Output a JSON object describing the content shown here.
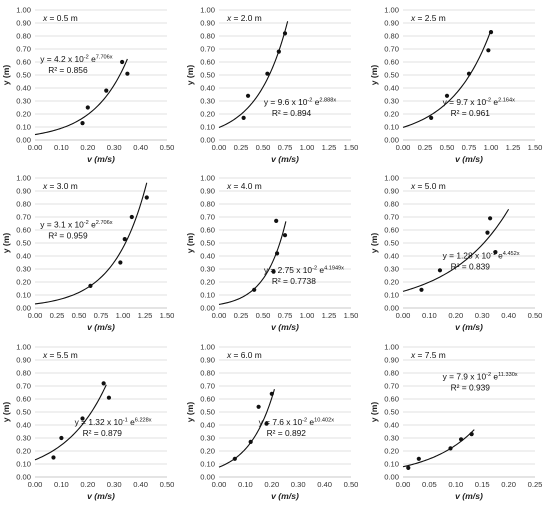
{
  "chart_data": [
    {
      "type": "scatter",
      "panel_label": "x = 0.5 m",
      "equation": {
        "prefix": "y = 4.2 x 10",
        "coef_exp": "-2",
        "mid": " e",
        "rate_exp": "7.706x"
      },
      "r2_text": "R² = 0.856",
      "coef": 0.042,
      "rate": 7.706,
      "points": [
        [
          0.18,
          0.13
        ],
        [
          0.2,
          0.25
        ],
        [
          0.27,
          0.38
        ],
        [
          0.33,
          0.6
        ],
        [
          0.35,
          0.51
        ]
      ],
      "trend_x": [
        0.0,
        0.35
      ],
      "xlim": [
        0,
        0.5
      ],
      "xticks": [
        0,
        0.1,
        0.2,
        0.3,
        0.4,
        0.5
      ],
      "xdecimals": 2,
      "ylim": [
        0,
        1
      ],
      "yticks": [
        0,
        0.1,
        0.2,
        0.3,
        0.4,
        0.5,
        0.6,
        0.7,
        0.8,
        0.9,
        1.0
      ],
      "xlabel": "v (m/s)",
      "ylabel": "y (m)"
    },
    {
      "type": "scatter",
      "panel_label": "x = 2.0 m",
      "equation": {
        "prefix": "y = 9.6 x 10",
        "coef_exp": "-2",
        "mid": " e",
        "rate_exp": "2.888x"
      },
      "r2_text": "R² = 0.894",
      "coef": 0.096,
      "rate": 2.888,
      "points": [
        [
          0.28,
          0.17
        ],
        [
          0.33,
          0.34
        ],
        [
          0.55,
          0.51
        ],
        [
          0.68,
          0.68
        ],
        [
          0.75,
          0.82
        ]
      ],
      "trend_x": [
        0.0,
        0.78
      ],
      "xlim": [
        0,
        1.5
      ],
      "xticks": [
        0,
        0.25,
        0.5,
        0.75,
        1.0,
        1.25,
        1.5
      ],
      "xdecimals": 2,
      "ylim": [
        0,
        1
      ],
      "yticks": [
        0,
        0.1,
        0.2,
        0.3,
        0.4,
        0.5,
        0.6,
        0.7,
        0.8,
        0.9,
        1.0
      ],
      "xlabel": "v (m/s)",
      "ylabel": "y (m)"
    },
    {
      "type": "scatter",
      "panel_label": "x = 2.5 m",
      "equation": {
        "prefix": "y = 9.7 x 10",
        "coef_exp": "-2",
        "mid": " e",
        "rate_exp": "2.164x"
      },
      "r2_text": "R² = 0.961",
      "coef": 0.097,
      "rate": 2.164,
      "points": [
        [
          0.32,
          0.17
        ],
        [
          0.5,
          0.34
        ],
        [
          0.75,
          0.51
        ],
        [
          0.97,
          0.69
        ],
        [
          1.0,
          0.83
        ]
      ],
      "trend_x": [
        0.0,
        1.0
      ],
      "xlim": [
        0,
        1.5
      ],
      "xticks": [
        0,
        0.25,
        0.5,
        0.75,
        1.0,
        1.25,
        1.5
      ],
      "xdecimals": 2,
      "ylim": [
        0,
        1
      ],
      "yticks": [
        0,
        0.1,
        0.2,
        0.3,
        0.4,
        0.5,
        0.6,
        0.7,
        0.8,
        0.9,
        1.0
      ],
      "xlabel": "v (m/s)",
      "ylabel": "y (m)"
    },
    {
      "type": "scatter",
      "panel_label": "x = 3.0 m",
      "equation": {
        "prefix": "y = 3.1 x 10",
        "coef_exp": "-2",
        "mid": " e",
        "rate_exp": "2.706x"
      },
      "r2_text": "R² = 0.959",
      "coef": 0.031,
      "rate": 2.706,
      "points": [
        [
          0.63,
          0.17
        ],
        [
          0.97,
          0.35
        ],
        [
          1.02,
          0.53
        ],
        [
          1.1,
          0.7
        ],
        [
          1.27,
          0.85
        ]
      ],
      "trend_x": [
        0.0,
        1.27
      ],
      "xlim": [
        0,
        1.5
      ],
      "xticks": [
        0,
        0.25,
        0.5,
        0.75,
        1.0,
        1.25,
        1.5
      ],
      "xdecimals": 2,
      "ylim": [
        0,
        1
      ],
      "yticks": [
        0,
        0.1,
        0.2,
        0.3,
        0.4,
        0.5,
        0.6,
        0.7,
        0.8,
        0.9,
        1.0
      ],
      "xlabel": "v (m/s)",
      "ylabel": "y (m)"
    },
    {
      "type": "scatter",
      "panel_label": "x = 4.0 m",
      "equation": {
        "prefix": "y = 2.75 x 10",
        "coef_exp": "-2",
        "mid": " e",
        "rate_exp": "4.1949x"
      },
      "r2_text": "R² = 0.7738",
      "coef": 0.0275,
      "rate": 4.1949,
      "points": [
        [
          0.4,
          0.14
        ],
        [
          0.62,
          0.28
        ],
        [
          0.66,
          0.42
        ],
        [
          0.65,
          0.67
        ],
        [
          0.75,
          0.56
        ]
      ],
      "trend_x": [
        0.0,
        0.76
      ],
      "xlim": [
        0,
        1.5
      ],
      "xticks": [
        0,
        0.25,
        0.5,
        0.75,
        1.0,
        1.25,
        1.5
      ],
      "xdecimals": 2,
      "ylim": [
        0,
        1
      ],
      "yticks": [
        0,
        0.1,
        0.2,
        0.3,
        0.4,
        0.5,
        0.6,
        0.7,
        0.8,
        0.9,
        1.0
      ],
      "xlabel": "v (m/s)",
      "ylabel": "y (m)"
    },
    {
      "type": "scatter",
      "panel_label": "x = 5.0 m",
      "equation": {
        "prefix": "y = 1.28 x 10",
        "coef_exp": "-1",
        "mid": " e",
        "rate_exp": "4.452x"
      },
      "r2_text": "R² = 0.839",
      "coef": 0.128,
      "rate": 4.452,
      "points": [
        [
          0.07,
          0.14
        ],
        [
          0.14,
          0.29
        ],
        [
          0.32,
          0.58
        ],
        [
          0.33,
          0.69
        ],
        [
          0.35,
          0.43
        ]
      ],
      "trend_x": [
        0.0,
        0.4
      ],
      "xlim": [
        0,
        0.5
      ],
      "xticks": [
        0,
        0.1,
        0.2,
        0.3,
        0.4,
        0.5
      ],
      "xdecimals": 2,
      "ylim": [
        0,
        1
      ],
      "yticks": [
        0,
        0.1,
        0.2,
        0.3,
        0.4,
        0.5,
        0.6,
        0.7,
        0.8,
        0.9,
        1.0
      ],
      "xlabel": "v (m/s)",
      "ylabel": "y (m)"
    },
    {
      "type": "scatter",
      "panel_label": "x = 5.5 m",
      "equation": {
        "prefix": "y = 1.32 x 10",
        "coef_exp": "-1",
        "mid": " e",
        "rate_exp": "6.228x"
      },
      "r2_text": "R² = 0.879",
      "coef": 0.132,
      "rate": 6.228,
      "points": [
        [
          0.07,
          0.15
        ],
        [
          0.1,
          0.3
        ],
        [
          0.18,
          0.45
        ],
        [
          0.26,
          0.72
        ],
        [
          0.28,
          0.61
        ]
      ],
      "trend_x": [
        0.0,
        0.27
      ],
      "xlim": [
        0,
        0.5
      ],
      "xticks": [
        0,
        0.1,
        0.2,
        0.3,
        0.4,
        0.5
      ],
      "xdecimals": 2,
      "ylim": [
        0,
        1
      ],
      "yticks": [
        0,
        0.1,
        0.2,
        0.3,
        0.4,
        0.5,
        0.6,
        0.7,
        0.8,
        0.9,
        1.0
      ],
      "xlabel": "v (m/s)",
      "ylabel": "y (m)"
    },
    {
      "type": "scatter",
      "panel_label": "x = 6.0 m",
      "equation": {
        "prefix": "y = 7.6 x 10",
        "coef_exp": "-2",
        "mid": " e",
        "rate_exp": "10.402x"
      },
      "r2_text": "R² = 0.892",
      "coef": 0.076,
      "rate": 10.402,
      "points": [
        [
          0.06,
          0.14
        ],
        [
          0.12,
          0.27
        ],
        [
          0.15,
          0.54
        ],
        [
          0.18,
          0.41
        ],
        [
          0.2,
          0.64
        ]
      ],
      "trend_x": [
        0.0,
        0.21
      ],
      "xlim": [
        0,
        0.5
      ],
      "xticks": [
        0,
        0.1,
        0.2,
        0.3,
        0.4,
        0.5
      ],
      "xdecimals": 2,
      "ylim": [
        0,
        1
      ],
      "yticks": [
        0,
        0.1,
        0.2,
        0.3,
        0.4,
        0.5,
        0.6,
        0.7,
        0.8,
        0.9,
        1.0
      ],
      "xlabel": "v (m/s)",
      "ylabel": "y (m)"
    },
    {
      "type": "scatter",
      "panel_label": "x = 7.5 m",
      "equation": {
        "prefix": "y = 7.9 x 10",
        "coef_exp": "-2",
        "mid": " e",
        "rate_exp": "11.330x"
      },
      "r2_text": "R² = 0.939",
      "coef": 0.079,
      "rate": 11.33,
      "points": [
        [
          0.01,
          0.07
        ],
        [
          0.03,
          0.14
        ],
        [
          0.09,
          0.22
        ],
        [
          0.11,
          0.29
        ],
        [
          0.13,
          0.33
        ]
      ],
      "trend_x": [
        0.0,
        0.135
      ],
      "xlim": [
        0,
        0.25
      ],
      "xticks": [
        0,
        0.05,
        0.1,
        0.15,
        0.2,
        0.25
      ],
      "xdecimals": 2,
      "ylim": [
        0,
        1
      ],
      "yticks": [
        0,
        0.1,
        0.2,
        0.3,
        0.4,
        0.5,
        0.6,
        0.7,
        0.8,
        0.9,
        1.0
      ],
      "xlabel": "v (m/s)",
      "ylabel": "y (m)"
    }
  ]
}
